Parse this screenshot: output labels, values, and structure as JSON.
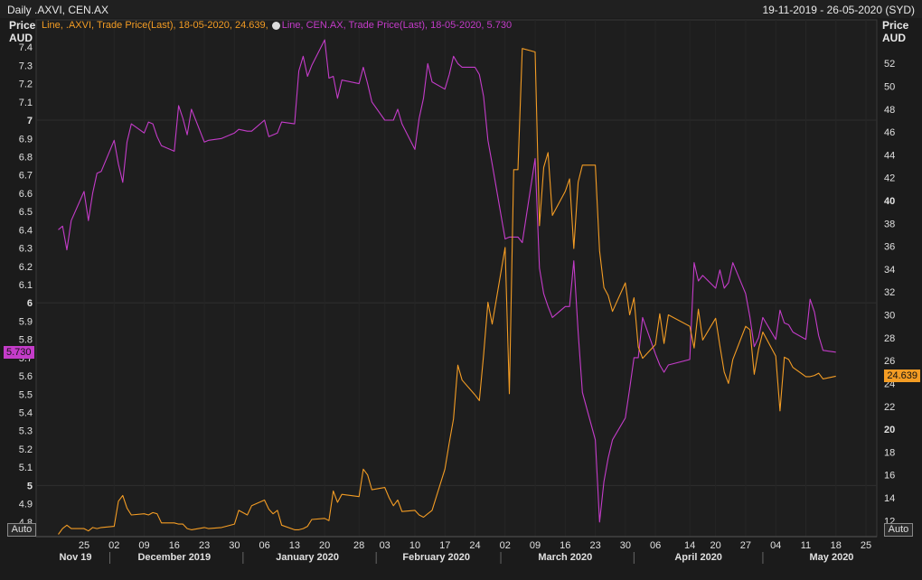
{
  "header": {
    "title": "Daily .AXVI, CEN.AX",
    "date_range": "19-11-2019 - 26-05-2020 (SYD)"
  },
  "left_axis": {
    "title_line1": "Price",
    "title_line2": "AUD"
  },
  "right_axis": {
    "title_line1": "Price",
    "title_line2": "AUD"
  },
  "legend": {
    "orange": "Line, .AXVI, Trade Price(Last), 18-05-2020, 24.639,",
    "purple": "Line, CEN.AX, Trade Price(Last), 18-05-2020, 5.730"
  },
  "badges": {
    "left_value": "5.730",
    "right_value": "24.639"
  },
  "buttons": {
    "auto_left": "Auto",
    "auto_right": "Auto"
  },
  "colors": {
    "cen": "#c43cc9",
    "axvi": "#f39c24",
    "background": "#1b1b1b",
    "grid": "#2e2e2e"
  },
  "chart_data": {
    "type": "line",
    "title": "Daily .AXVI, CEN.AX",
    "left_axis": {
      "ylim": [
        4.72,
        7.48
      ],
      "ticks": [
        4.8,
        4.9,
        5,
        5.1,
        5.2,
        5.3,
        5.4,
        5.5,
        5.6,
        5.7,
        5.8,
        5.9,
        6,
        6.1,
        6.2,
        6.3,
        6.4,
        6.5,
        6.6,
        6.7,
        6.8,
        6.9,
        7,
        7.1,
        7.2,
        7.3,
        7.4
      ],
      "bold_ticks": [
        5,
        6,
        7
      ]
    },
    "right_axis": {
      "ylim": [
        10.6,
        54.7
      ],
      "ticks": [
        12,
        14,
        16,
        18,
        20,
        22,
        24,
        26,
        28,
        30,
        32,
        34,
        36,
        38,
        40,
        42,
        44,
        46,
        48,
        50,
        52
      ],
      "bold_ticks": [
        20,
        40
      ]
    },
    "x_axis": {
      "day_ticks": [
        "25",
        "02",
        "09",
        "16",
        "23",
        "30",
        "06",
        "13",
        "20",
        "28",
        "03",
        "10",
        "17",
        "24",
        "02",
        "09",
        "16",
        "23",
        "30",
        "06",
        "14",
        "20",
        "27",
        "04",
        "11",
        "18",
        "25"
      ],
      "month_labels": [
        "Nov 19",
        "December 2019",
        "January 2020",
        "February 2020",
        "March 2020",
        "April 2020",
        "May 2020"
      ]
    },
    "series": [
      {
        "name": "CEN.AX",
        "axis": "left",
        "color": "#c43cc9",
        "x": [
          "2019-11-19",
          "2019-11-20",
          "2019-11-21",
          "2019-11-22",
          "2019-11-25",
          "2019-11-26",
          "2019-11-27",
          "2019-11-28",
          "2019-11-29",
          "2019-12-02",
          "2019-12-03",
          "2019-12-04",
          "2019-12-05",
          "2019-12-06",
          "2019-12-09",
          "2019-12-10",
          "2019-12-11",
          "2019-12-12",
          "2019-12-13",
          "2019-12-16",
          "2019-12-17",
          "2019-12-18",
          "2019-12-19",
          "2019-12-20",
          "2019-12-23",
          "2019-12-24",
          "2019-12-27",
          "2019-12-30",
          "2019-12-31",
          "2020-01-02",
          "2020-01-03",
          "2020-01-06",
          "2020-01-07",
          "2020-01-08",
          "2020-01-09",
          "2020-01-10",
          "2020-01-13",
          "2020-01-14",
          "2020-01-15",
          "2020-01-16",
          "2020-01-17",
          "2020-01-20",
          "2020-01-21",
          "2020-01-22",
          "2020-01-23",
          "2020-01-24",
          "2020-01-28",
          "2020-01-29",
          "2020-01-30",
          "2020-01-31",
          "2020-02-03",
          "2020-02-04",
          "2020-02-05",
          "2020-02-06",
          "2020-02-07",
          "2020-02-10",
          "2020-02-11",
          "2020-02-12",
          "2020-02-13",
          "2020-02-14",
          "2020-02-17",
          "2020-02-18",
          "2020-02-19",
          "2020-02-20",
          "2020-02-21",
          "2020-02-24",
          "2020-02-25",
          "2020-02-26",
          "2020-02-27",
          "2020-02-28",
          "2020-03-02",
          "2020-03-03",
          "2020-03-04",
          "2020-03-05",
          "2020-03-06",
          "2020-03-09",
          "2020-03-10",
          "2020-03-11",
          "2020-03-12",
          "2020-03-13",
          "2020-03-16",
          "2020-03-17",
          "2020-03-18",
          "2020-03-19",
          "2020-03-20",
          "2020-03-23",
          "2020-03-24",
          "2020-03-25",
          "2020-03-26",
          "2020-03-27",
          "2020-03-30",
          "2020-03-31",
          "2020-04-01",
          "2020-04-02",
          "2020-04-03",
          "2020-04-06",
          "2020-04-07",
          "2020-04-08",
          "2020-04-09",
          "2020-04-14",
          "2020-04-15",
          "2020-04-16",
          "2020-04-17",
          "2020-04-20",
          "2020-04-21",
          "2020-04-22",
          "2020-04-23",
          "2020-04-24",
          "2020-04-27",
          "2020-04-28",
          "2020-04-29",
          "2020-04-30",
          "2020-05-01",
          "2020-05-04",
          "2020-05-05",
          "2020-05-06",
          "2020-05-07",
          "2020-05-08",
          "2020-05-11",
          "2020-05-12",
          "2020-05-13",
          "2020-05-14",
          "2020-05-15",
          "2020-05-18"
        ],
        "values": [
          6.4,
          6.42,
          6.29,
          6.45,
          6.61,
          6.45,
          6.6,
          6.71,
          6.72,
          6.89,
          6.76,
          6.66,
          6.88,
          6.98,
          6.93,
          6.99,
          6.98,
          6.91,
          6.86,
          6.83,
          7.08,
          7.01,
          6.92,
          7.06,
          6.88,
          6.89,
          6.9,
          6.93,
          6.95,
          6.94,
          6.94,
          7.0,
          6.91,
          6.92,
          6.93,
          6.99,
          6.98,
          7.27,
          7.35,
          7.24,
          7.3,
          7.44,
          7.23,
          7.24,
          7.12,
          7.22,
          7.2,
          7.29,
          7.2,
          7.1,
          7.0,
          7.0,
          7.0,
          7.06,
          6.98,
          6.84,
          7.01,
          7.12,
          7.31,
          7.21,
          7.17,
          7.25,
          7.35,
          7.31,
          7.29,
          7.29,
          7.25,
          7.13,
          6.89,
          6.76,
          6.35,
          6.36,
          6.36,
          6.36,
          6.33,
          6.79,
          6.19,
          6.05,
          5.98,
          5.92,
          5.98,
          5.98,
          6.23,
          5.84,
          5.51,
          5.25,
          4.8,
          5.02,
          5.15,
          5.25,
          5.37,
          5.53,
          5.7,
          5.7,
          5.92,
          5.72,
          5.66,
          5.62,
          5.66,
          5.69,
          6.22,
          6.12,
          6.15,
          6.08,
          6.18,
          6.08,
          6.11,
          6.22,
          6.05,
          5.92,
          5.76,
          5.81,
          5.92,
          5.8,
          5.96,
          5.89,
          5.88,
          5.84,
          5.8,
          6.02,
          5.95,
          5.82,
          5.74,
          5.73
        ]
      },
      {
        "name": ".AXVI",
        "axis": "right",
        "color": "#f39c24",
        "x": [
          "2019-11-19",
          "2019-11-20",
          "2019-11-21",
          "2019-11-22",
          "2019-11-25",
          "2019-11-26",
          "2019-11-27",
          "2019-11-28",
          "2019-11-29",
          "2019-12-02",
          "2019-12-03",
          "2019-12-04",
          "2019-12-05",
          "2019-12-06",
          "2019-12-09",
          "2019-12-10",
          "2019-12-11",
          "2019-12-12",
          "2019-12-13",
          "2019-12-16",
          "2019-12-17",
          "2019-12-18",
          "2019-12-19",
          "2019-12-20",
          "2019-12-23",
          "2019-12-24",
          "2019-12-27",
          "2019-12-30",
          "2019-12-31",
          "2020-01-02",
          "2020-01-03",
          "2020-01-06",
          "2020-01-07",
          "2020-01-08",
          "2020-01-09",
          "2020-01-10",
          "2020-01-13",
          "2020-01-14",
          "2020-01-15",
          "2020-01-16",
          "2020-01-17",
          "2020-01-20",
          "2020-01-21",
          "2020-01-22",
          "2020-01-23",
          "2020-01-24",
          "2020-01-28",
          "2020-01-29",
          "2020-01-30",
          "2020-01-31",
          "2020-02-03",
          "2020-02-04",
          "2020-02-05",
          "2020-02-06",
          "2020-02-07",
          "2020-02-10",
          "2020-02-11",
          "2020-02-12",
          "2020-02-13",
          "2020-02-14",
          "2020-02-17",
          "2020-02-18",
          "2020-02-19",
          "2020-02-20",
          "2020-02-21",
          "2020-02-24",
          "2020-02-25",
          "2020-02-26",
          "2020-02-27",
          "2020-02-28",
          "2020-03-02",
          "2020-03-03",
          "2020-03-04",
          "2020-03-05",
          "2020-03-06",
          "2020-03-09",
          "2020-03-10",
          "2020-03-11",
          "2020-03-12",
          "2020-03-13",
          "2020-03-16",
          "2020-03-17",
          "2020-03-18",
          "2020-03-19",
          "2020-03-20",
          "2020-03-23",
          "2020-03-24",
          "2020-03-25",
          "2020-03-26",
          "2020-03-27",
          "2020-03-30",
          "2020-03-31",
          "2020-04-01",
          "2020-04-02",
          "2020-04-03",
          "2020-04-06",
          "2020-04-07",
          "2020-04-08",
          "2020-04-09",
          "2020-04-14",
          "2020-04-15",
          "2020-04-16",
          "2020-04-17",
          "2020-04-20",
          "2020-04-21",
          "2020-04-22",
          "2020-04-23",
          "2020-04-24",
          "2020-04-27",
          "2020-04-28",
          "2020-04-29",
          "2020-04-30",
          "2020-05-01",
          "2020-05-04",
          "2020-05-05",
          "2020-05-06",
          "2020-05-07",
          "2020-05-08",
          "2020-05-11",
          "2020-05-12",
          "2020-05-13",
          "2020-05-14",
          "2020-05-15",
          "2020-05-18"
        ],
        "values": [
          10.8,
          11.3,
          11.6,
          11.3,
          11.3,
          11.1,
          11.4,
          11.3,
          11.4,
          11.5,
          13.7,
          14.2,
          13.1,
          12.5,
          12.6,
          12.5,
          12.7,
          12.6,
          11.8,
          11.8,
          11.7,
          11.7,
          11.3,
          11.2,
          11.4,
          11.3,
          11.4,
          11.7,
          12.9,
          12.5,
          13.3,
          13.8,
          13.0,
          12.6,
          12.9,
          11.6,
          11.2,
          11.2,
          11.3,
          11.5,
          12.1,
          12.2,
          12.0,
          14.6,
          13.6,
          14.3,
          14.1,
          16.5,
          16.0,
          14.7,
          14.9,
          14.0,
          13.3,
          13.8,
          12.8,
          12.9,
          12.5,
          12.3,
          12.6,
          12.9,
          16.5,
          18.8,
          20.9,
          25.6,
          24.3,
          23.0,
          22.5,
          26.5,
          31.1,
          29.2,
          35.9,
          23.1,
          42.7,
          42.7,
          53.3,
          53.0,
          37.8,
          42.9,
          44.2,
          38.7,
          40.8,
          41.9,
          35.8,
          41.6,
          43.1,
          43.1,
          35.6,
          32.4,
          31.7,
          30.3,
          32.8,
          30.0,
          31.5,
          27.2,
          26.2,
          27.4,
          30.1,
          27.5,
          30.0,
          29.0,
          27.1,
          30.5,
          27.8,
          29.7,
          27.3,
          25.0,
          24.0,
          26.1,
          29.0,
          28.7,
          24.8,
          27.0,
          28.5,
          26.4,
          21.6,
          26.3,
          26.1,
          25.4,
          24.6,
          24.6,
          24.7,
          24.9,
          24.4,
          24.639
        ]
      }
    ]
  }
}
